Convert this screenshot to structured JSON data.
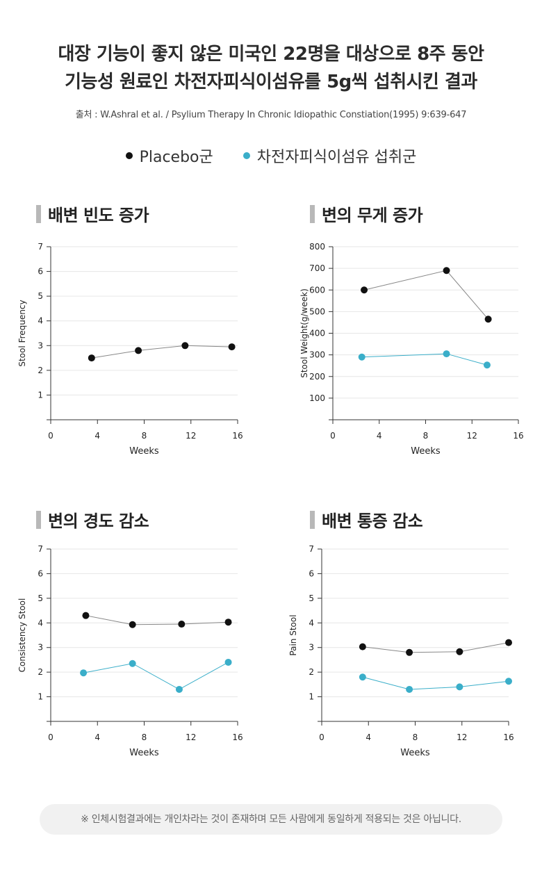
{
  "header": {
    "title_line1": "대장 기능이 좋지 않은 미국인 22명을 대상으로 8주 동안",
    "title_line2": "기능성 원료인 차전자피식이섬유를 5g씩 섭취시킨 결과",
    "source": "출처 : W.Ashral et al. / Psylium Therapy In Chronic Idiopathic Constiation(1995) 9:639-647"
  },
  "legend": {
    "placebo_label": "Placebo군",
    "psyllium_label": "차전자피식이섬유 섭취군",
    "placebo_color": "#111111",
    "psyllium_color": "#3aaec9"
  },
  "chart_data": [
    {
      "type": "line",
      "title": "배변 빈도 증가",
      "xlabel": "Weeks",
      "ylabel": "Stool Frequency",
      "xlim": [
        0,
        16
      ],
      "ylim": [
        0,
        7
      ],
      "xticks": [
        0,
        4,
        8,
        12,
        16
      ],
      "yticks": [
        1,
        2,
        3,
        4,
        5,
        6,
        7
      ],
      "grid": true,
      "series": [
        {
          "name": "Placebo군",
          "color": "#111111",
          "x": [
            3.5,
            7.5,
            11.5,
            15.5
          ],
          "y": [
            2.5,
            2.8,
            3.0,
            2.95
          ]
        }
      ]
    },
    {
      "type": "line",
      "title": "변의 무게 증가",
      "xlabel": "Weeks",
      "ylabel": "Stool Weight(g/week)",
      "xlim": [
        0,
        16
      ],
      "ylim": [
        0,
        800
      ],
      "xticks": [
        0,
        4,
        8,
        12,
        16
      ],
      "yticks": [
        100,
        200,
        300,
        400,
        500,
        600,
        700,
        800
      ],
      "grid": true,
      "series": [
        {
          "name": "Placebo군",
          "color": "#111111",
          "x": [
            2.7,
            9.8,
            13.4
          ],
          "y": [
            600,
            690,
            465
          ]
        },
        {
          "name": "차전자피식이섬유 섭취군",
          "color": "#3aaec9",
          "x": [
            2.5,
            9.8,
            13.3
          ],
          "y": [
            290,
            305,
            253
          ]
        }
      ]
    },
    {
      "type": "line",
      "title": "변의 경도 감소",
      "xlabel": "Weeks",
      "ylabel": "Consistency Stool",
      "xlim": [
        0,
        16
      ],
      "ylim": [
        0,
        7
      ],
      "xticks": [
        0,
        4,
        8,
        12,
        16
      ],
      "yticks": [
        1,
        2,
        3,
        4,
        5,
        6,
        7
      ],
      "grid": true,
      "series": [
        {
          "name": "Placebo군",
          "color": "#111111",
          "x": [
            3.0,
            7.0,
            11.2,
            15.2
          ],
          "y": [
            4.3,
            3.93,
            3.95,
            4.03
          ]
        },
        {
          "name": "차전자피식이섬유 섭취군",
          "color": "#3aaec9",
          "x": [
            2.8,
            7.0,
            11.0,
            15.2
          ],
          "y": [
            1.97,
            2.35,
            1.3,
            2.4
          ]
        }
      ]
    },
    {
      "type": "line",
      "title": "배변 통증 감소",
      "xlabel": "Weeks",
      "ylabel": "Pain Stool",
      "xlim": [
        0,
        16
      ],
      "ylim": [
        0,
        7
      ],
      "xticks": [
        0,
        4,
        8,
        12,
        16
      ],
      "yticks": [
        1,
        2,
        3,
        4,
        5,
        6,
        7
      ],
      "grid": true,
      "series": [
        {
          "name": "Placebo군",
          "color": "#111111",
          "x": [
            3.5,
            7.5,
            11.8,
            16.0
          ],
          "y": [
            3.03,
            2.8,
            2.83,
            3.2
          ]
        },
        {
          "name": "차전자피식이섬유 섭취군",
          "color": "#3aaec9",
          "x": [
            3.5,
            7.5,
            11.8,
            16.0
          ],
          "y": [
            1.8,
            1.3,
            1.4,
            1.63
          ]
        }
      ]
    }
  ],
  "footnote": "※ 인체시험결과에는 개인차라는 것이 존재하며 모든 사람에게 동일하게 적용되는 것은 아닙니다."
}
